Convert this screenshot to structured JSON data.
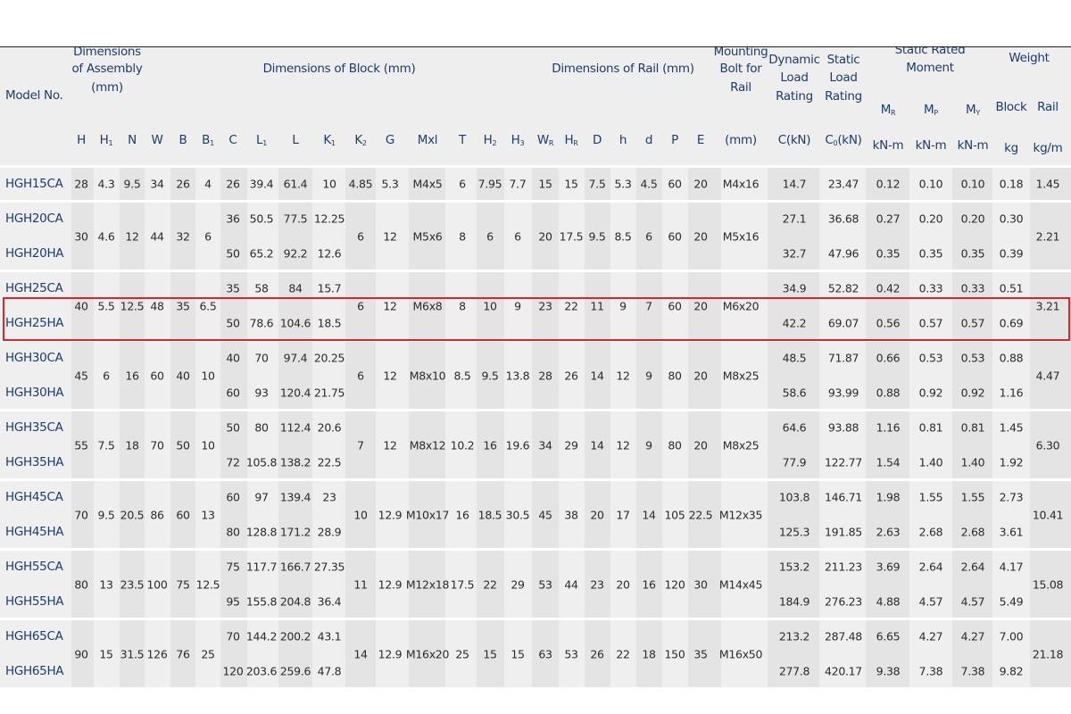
{
  "header": {
    "model": "Model No.",
    "assembly": [
      "Dimensions",
      "of Assembly",
      "(mm)"
    ],
    "block": "Dimensions of Block (mm)",
    "rail": "Dimensions of Rail (mm)",
    "bolt": [
      "Mounting",
      "Bolt for",
      "Rail"
    ],
    "dynamic": [
      "Dynamic",
      "Load",
      "Rating"
    ],
    "static": [
      "Static",
      "Load",
      "Rating"
    ],
    "moment": [
      "Static Rated",
      "Moment"
    ],
    "weight": "Weight",
    "moments": [
      {
        "main": "M",
        "sub": "R"
      },
      {
        "main": "M",
        "sub": "P"
      },
      {
        "main": "M",
        "sub": "Y"
      }
    ],
    "block_weight": "Block",
    "rail_weight": "Rail",
    "columns": [
      {
        "main": "H"
      },
      {
        "main": "H",
        "sub": "1"
      },
      {
        "main": "N"
      },
      {
        "main": "W"
      },
      {
        "main": "B"
      },
      {
        "main": "B",
        "sub": "1"
      },
      {
        "main": "C"
      },
      {
        "main": "L",
        "sub": "1"
      },
      {
        "main": "L"
      },
      {
        "main": "K",
        "sub": "1"
      },
      {
        "main": "K",
        "sub": "2"
      },
      {
        "main": "G"
      },
      {
        "main": "Mxl"
      },
      {
        "main": "T"
      },
      {
        "main": "H",
        "sub": "2"
      },
      {
        "main": "H",
        "sub": "3"
      },
      {
        "main": "W",
        "sub": "R"
      },
      {
        "main": "H",
        "sub": "R"
      },
      {
        "main": "D"
      },
      {
        "main": "h"
      },
      {
        "main": "d"
      },
      {
        "main": "P"
      },
      {
        "main": "E"
      }
    ],
    "units": {
      "bolt": "(mm)",
      "dynamic": "C(kN)",
      "static": {
        "main": "C",
        "sub": "0",
        "after": "(kN)"
      },
      "moment": [
        "kN-m",
        "kN-m",
        "kN-m"
      ],
      "block": "kg",
      "rail": "kg/m"
    }
  },
  "groups": [
    {
      "shared": [
        "28",
        "4.3",
        "9.5",
        "34",
        "26",
        "4",
        "4.85",
        "5.3",
        "M4x5",
        "6",
        "7.95",
        "7.7",
        "15",
        "15",
        "7.5",
        "5.3",
        "4.5",
        "60",
        "20",
        "M4x16",
        "1.45"
      ],
      "rows": [
        [
          "HGH15CA",
          "26",
          "39.4",
          "61.4",
          "10",
          "14.7",
          "23.47",
          "0.12",
          "0.10",
          "0.10",
          "0.18"
        ]
      ]
    },
    {
      "shared": [
        "30",
        "4.6",
        "12",
        "44",
        "32",
        "6",
        "6",
        "12",
        "M5x6",
        "8",
        "6",
        "6",
        "20",
        "17.5",
        "9.5",
        "8.5",
        "6",
        "60",
        "20",
        "M5x16",
        "2.21"
      ],
      "rows": [
        [
          "HGH20CA",
          "36",
          "50.5",
          "77.5",
          "12.25",
          "27.1",
          "36.68",
          "0.27",
          "0.20",
          "0.20",
          "0.30"
        ],
        [
          "HGH20HA",
          "50",
          "65.2",
          "92.2",
          "12.6",
          "32.7",
          "47.96",
          "0.35",
          "0.35",
          "0.35",
          "0.39"
        ]
      ]
    },
    {
      "shared": [
        "40",
        "5.5",
        "12.5",
        "48",
        "35",
        "6.5",
        "6",
        "12",
        "M6x8",
        "8",
        "10",
        "9",
        "23",
        "22",
        "11",
        "9",
        "7",
        "60",
        "20",
        "M6x20",
        "3.21"
      ],
      "rows": [
        [
          "HGH25CA",
          "35",
          "58",
          "84",
          "15.7",
          "34.9",
          "52.82",
          "0.42",
          "0.33",
          "0.33",
          "0.51"
        ],
        [
          "HGH25HA",
          "50",
          "78.6",
          "104.6",
          "18.5",
          "42.2",
          "69.07",
          "0.56",
          "0.57",
          "0.57",
          "0.69"
        ]
      ]
    },
    {
      "shared": [
        "45",
        "6",
        "16",
        "60",
        "40",
        "10",
        "6",
        "12",
        "M8x10",
        "8.5",
        "9.5",
        "13.8",
        "28",
        "26",
        "14",
        "12",
        "9",
        "80",
        "20",
        "M8x25",
        "4.47"
      ],
      "rows": [
        [
          "HGH30CA",
          "40",
          "70",
          "97.4",
          "20.25",
          "48.5",
          "71.87",
          "0.66",
          "0.53",
          "0.53",
          "0.88"
        ],
        [
          "HGH30HA",
          "60",
          "93",
          "120.4",
          "21.75",
          "58.6",
          "93.99",
          "0.88",
          "0.92",
          "0.92",
          "1.16"
        ]
      ]
    },
    {
      "shared": [
        "55",
        "7.5",
        "18",
        "70",
        "50",
        "10",
        "7",
        "12",
        "M8x12",
        "10.2",
        "16",
        "19.6",
        "34",
        "29",
        "14",
        "12",
        "9",
        "80",
        "20",
        "M8x25",
        "6.30"
      ],
      "rows": [
        [
          "HGH35CA",
          "50",
          "80",
          "112.4",
          "20.6",
          "64.6",
          "93.88",
          "1.16",
          "0.81",
          "0.81",
          "1.45"
        ],
        [
          "HGH35HA",
          "72",
          "105.8",
          "138.2",
          "22.5",
          "77.9",
          "122.77",
          "1.54",
          "1.40",
          "1.40",
          "1.92"
        ]
      ]
    },
    {
      "shared": [
        "70",
        "9.5",
        "20.5",
        "86",
        "60",
        "13",
        "10",
        "12.9",
        "M10x17",
        "16",
        "18.5",
        "30.5",
        "45",
        "38",
        "20",
        "17",
        "14",
        "105",
        "22.5",
        "M12x35",
        "10.41"
      ],
      "rows": [
        [
          "HGH45CA",
          "60",
          "97",
          "139.4",
          "23",
          "103.8",
          "146.71",
          "1.98",
          "1.55",
          "1.55",
          "2.73"
        ],
        [
          "HGH45HA",
          "80",
          "128.8",
          "171.2",
          "28.9",
          "125.3",
          "191.85",
          "2.63",
          "2.68",
          "2.68",
          "3.61"
        ]
      ]
    },
    {
      "shared": [
        "80",
        "13",
        "23.5",
        "100",
        "75",
        "12.5",
        "11",
        "12.9",
        "M12x18",
        "17.5",
        "22",
        "29",
        "53",
        "44",
        "23",
        "20",
        "16",
        "120",
        "30",
        "M14x45",
        "15.08"
      ],
      "rows": [
        [
          "HGH55CA",
          "75",
          "117.7",
          "166.7",
          "27.35",
          "153.2",
          "211.23",
          "3.69",
          "2.64",
          "2.64",
          "4.17"
        ],
        [
          "HGH55HA",
          "95",
          "155.8",
          "204.8",
          "36.4",
          "184.9",
          "276.23",
          "4.88",
          "4.57",
          "4.57",
          "5.49"
        ]
      ]
    },
    {
      "shared": [
        "90",
        "15",
        "31.5",
        "126",
        "76",
        "25",
        "14",
        "12.9",
        "M16x20",
        "25",
        "15",
        "15",
        "63",
        "53",
        "26",
        "22",
        "18",
        "150",
        "35",
        "M16x50",
        "21.18"
      ],
      "rows": [
        [
          "HGH65CA",
          "70",
          "144.2",
          "200.2",
          "43.1",
          "213.2",
          "287.48",
          "6.65",
          "4.27",
          "4.27",
          "7.00"
        ],
        [
          "HGH65HA",
          "120",
          "203.6",
          "259.6",
          "47.8",
          "277.8",
          "420.17",
          "9.38",
          "7.38",
          "7.38",
          "9.82"
        ]
      ]
    }
  ]
}
